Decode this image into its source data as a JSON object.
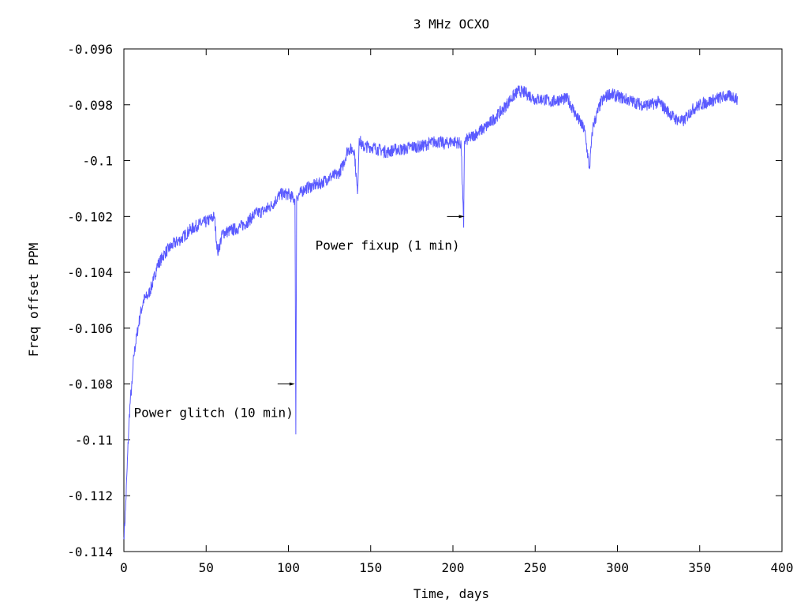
{
  "chart_data": {
    "type": "line",
    "title": "3 MHz OCXO",
    "xlabel": "Time, days",
    "ylabel": "Freq offset PPM",
    "xlim": [
      0,
      400
    ],
    "ylim": [
      -0.114,
      -0.096
    ],
    "x_ticks": [
      "0",
      "50",
      "100",
      "150",
      "200",
      "250",
      "300",
      "350",
      "400"
    ],
    "y_ticks": [
      "-0.096",
      "-0.098",
      "-0.1",
      "-0.102",
      "-0.104",
      "-0.106",
      "-0.108",
      "-0.11",
      "-0.112",
      "-0.114"
    ],
    "grid": false,
    "line_color": "#5a5aff",
    "series": [
      {
        "x": [
          0,
          1,
          2,
          3,
          4,
          5,
          6,
          8,
          10,
          12,
          15,
          18,
          20,
          25,
          30,
          35,
          40,
          45,
          50,
          55,
          57,
          60,
          65,
          70,
          75,
          80,
          85,
          90,
          95,
          100,
          104,
          104.5,
          105,
          110,
          115,
          120,
          125,
          130,
          133,
          136,
          140,
          142,
          143,
          145,
          150,
          155,
          160,
          165,
          170,
          175,
          180,
          185,
          190,
          195,
          200,
          205,
          206.5,
          207,
          210,
          215,
          220,
          225,
          230,
          235,
          240,
          245,
          250,
          255,
          260,
          265,
          270,
          275,
          280,
          283,
          285,
          290,
          295,
          300,
          305,
          310,
          315,
          320,
          325,
          330,
          335,
          340,
          345,
          350,
          355,
          360,
          365,
          370,
          373
        ],
        "y": [
          -0.1135,
          -0.1125,
          -0.111,
          -0.1095,
          -0.1085,
          -0.108,
          -0.107,
          -0.1062,
          -0.1055,
          -0.105,
          -0.1048,
          -0.1043,
          -0.1038,
          -0.1033,
          -0.103,
          -0.1028,
          -0.1025,
          -0.1023,
          -0.1022,
          -0.102,
          -0.1033,
          -0.1026,
          -0.1025,
          -0.1024,
          -0.1022,
          -0.1019,
          -0.1018,
          -0.1016,
          -0.1012,
          -0.1012,
          -0.1014,
          -0.1098,
          -0.1013,
          -0.101,
          -0.1009,
          -0.1008,
          -0.1006,
          -0.1005,
          -0.1002,
          -0.0996,
          -0.0996,
          -0.1012,
          -0.0992,
          -0.0995,
          -0.0995,
          -0.0996,
          -0.0997,
          -0.0996,
          -0.0996,
          -0.0995,
          -0.0995,
          -0.0994,
          -0.0993,
          -0.0994,
          -0.0993,
          -0.0994,
          -0.1024,
          -0.0993,
          -0.0992,
          -0.099,
          -0.0988,
          -0.0985,
          -0.0982,
          -0.0978,
          -0.0975,
          -0.0976,
          -0.0978,
          -0.0978,
          -0.0979,
          -0.0978,
          -0.0978,
          -0.0984,
          -0.0989,
          -0.1003,
          -0.0988,
          -0.0979,
          -0.0976,
          -0.0977,
          -0.0978,
          -0.0979,
          -0.098,
          -0.098,
          -0.0979,
          -0.0982,
          -0.0985,
          -0.0986,
          -0.0982,
          -0.098,
          -0.0979,
          -0.0978,
          -0.0977,
          -0.0977,
          -0.0978
        ]
      }
    ],
    "annotations": [
      {
        "text": "Power glitch (10 min)",
        "arrow_to": [
          104,
          -0.108
        ]
      },
      {
        "text": "Power fixup (1 min)",
        "arrow_to": [
          207,
          -0.102
        ]
      }
    ]
  }
}
